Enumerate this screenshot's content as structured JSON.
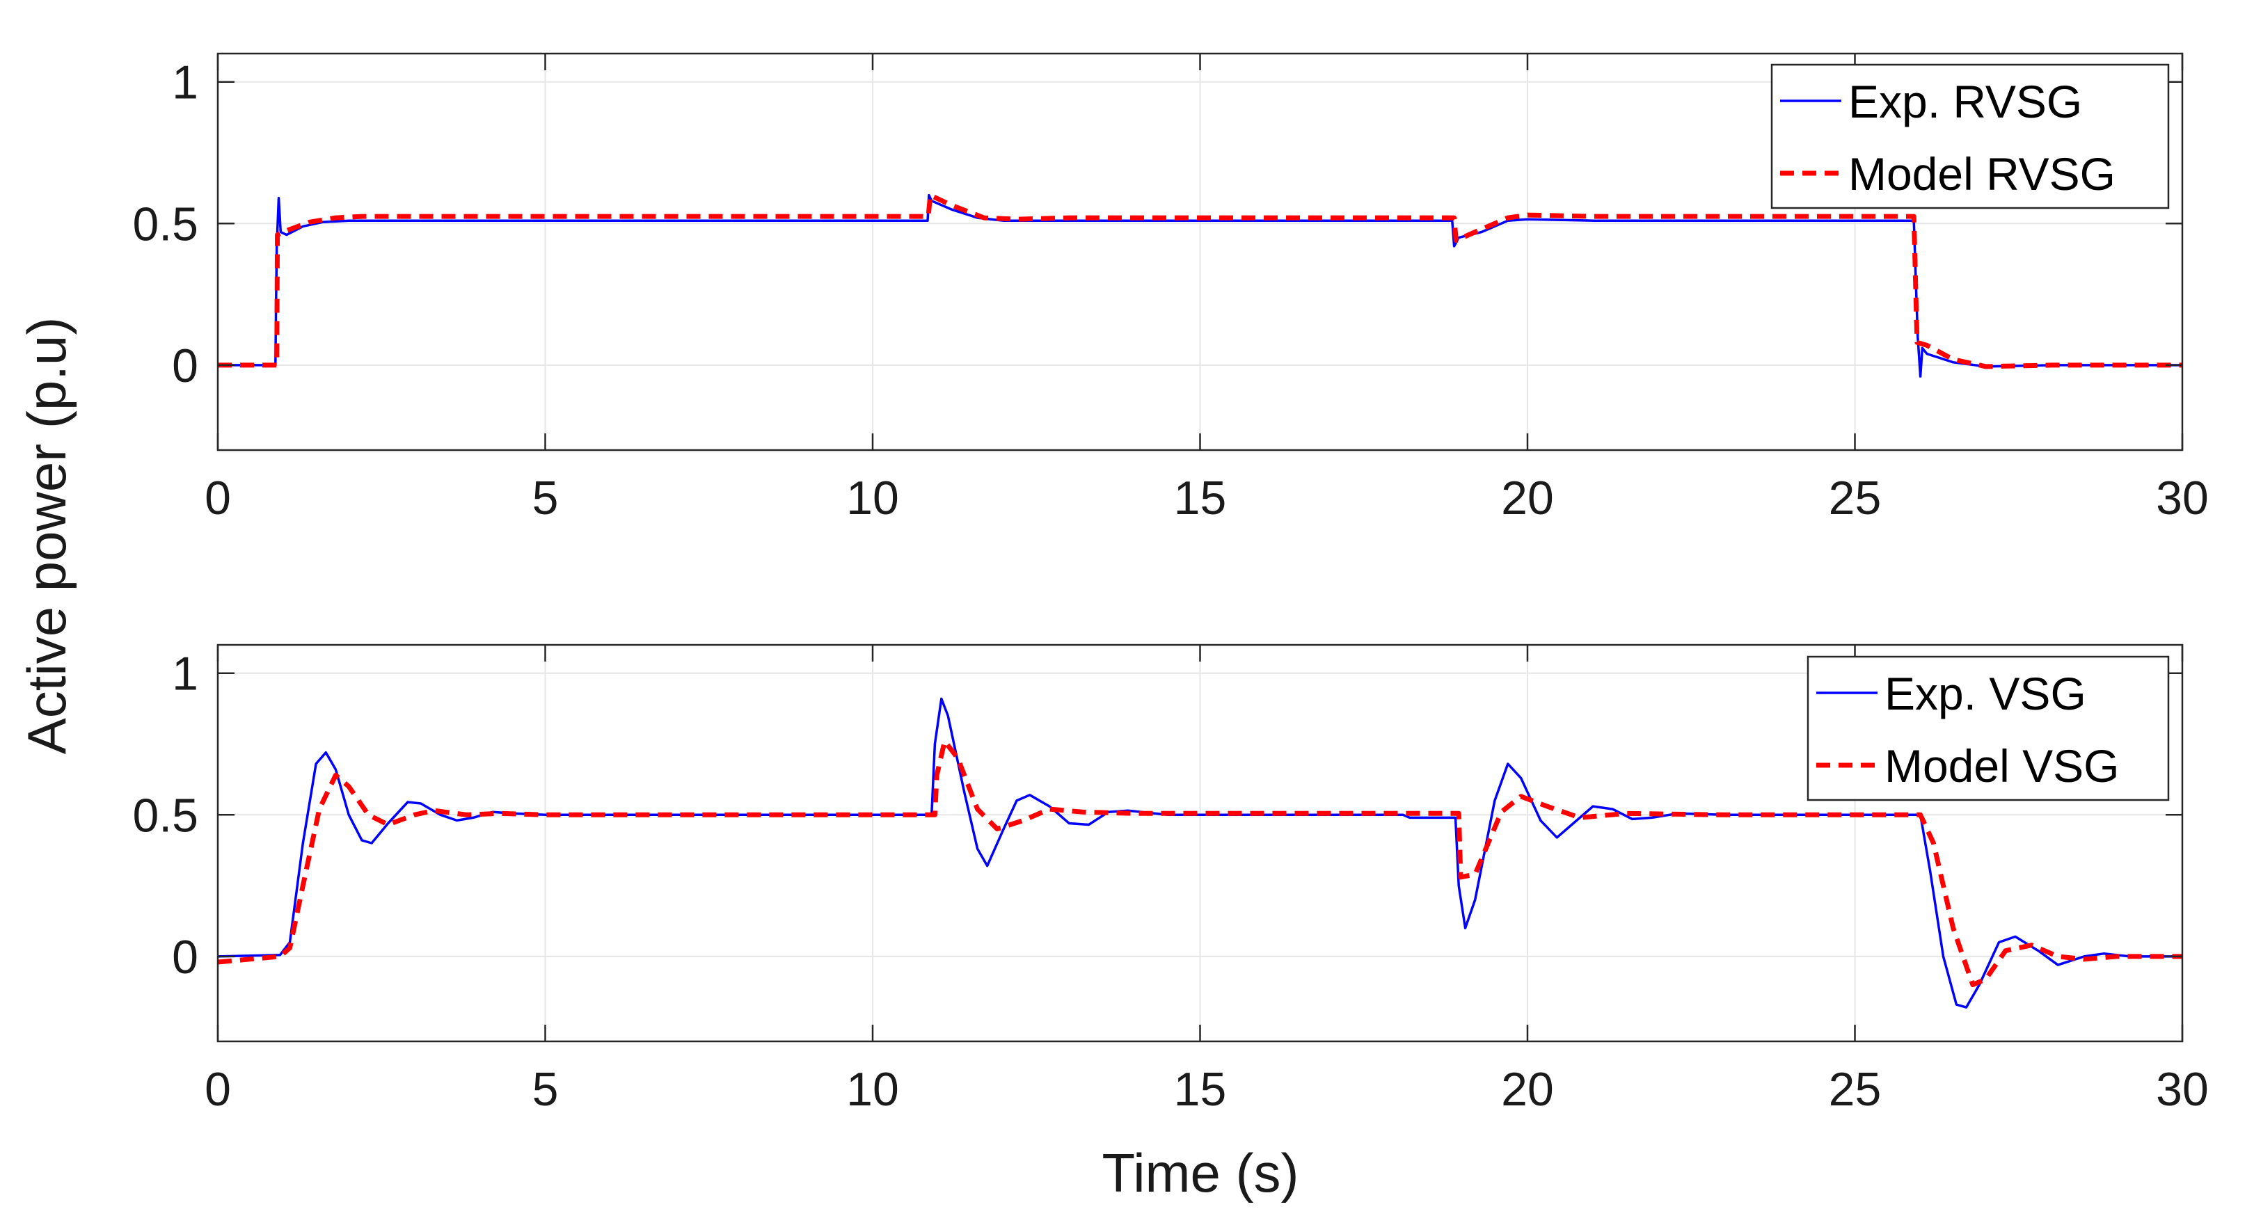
{
  "figure": {
    "xlabel": "Time (s)",
    "ylabel": "Active power (p.u)"
  },
  "colors": {
    "experiment": "#0000ff",
    "model": "#ff0000",
    "grid": "#e6e6e6",
    "axes": "#262626"
  },
  "chart_data": [
    {
      "type": "line",
      "xlim": [
        0,
        30
      ],
      "ylim": [
        -0.3,
        1.1
      ],
      "xticks": [
        "0",
        "5",
        "10",
        "15",
        "20",
        "25",
        "30"
      ],
      "yticks": [
        "0",
        "0.5",
        "1"
      ],
      "grid": true,
      "legend_position": "top-right",
      "series": [
        {
          "name": "Exp. RVSG",
          "style": "solid",
          "points": [
            [
              0,
              0
            ],
            [
              0.88,
              0
            ],
            [
              0.89,
              0.22
            ],
            [
              0.9,
              0.42
            ],
            [
              0.93,
              0.59
            ],
            [
              0.96,
              0.47
            ],
            [
              1.05,
              0.46
            ],
            [
              1.3,
              0.49
            ],
            [
              1.6,
              0.505
            ],
            [
              2,
              0.51
            ],
            [
              5,
              0.51
            ],
            [
              10.8,
              0.51
            ],
            [
              10.84,
              0.51
            ],
            [
              10.86,
              0.6
            ],
            [
              10.9,
              0.58
            ],
            [
              11.2,
              0.55
            ],
            [
              11.6,
              0.52
            ],
            [
              12,
              0.51
            ],
            [
              18.85,
              0.51
            ],
            [
              18.88,
              0.42
            ],
            [
              18.95,
              0.45
            ],
            [
              19.3,
              0.47
            ],
            [
              19.7,
              0.51
            ],
            [
              20,
              0.515
            ],
            [
              21,
              0.51
            ],
            [
              25.9,
              0.51
            ],
            [
              25.93,
              0.3
            ],
            [
              25.96,
              0.1
            ],
            [
              26.0,
              -0.04
            ],
            [
              26.03,
              0.06
            ],
            [
              26.1,
              0.04
            ],
            [
              26.5,
              0.01
            ],
            [
              27,
              -0.005
            ],
            [
              28,
              0
            ],
            [
              30,
              0
            ]
          ]
        },
        {
          "name": "Model RVSG",
          "style": "dashed",
          "points": [
            [
              0,
              0
            ],
            [
              0.9,
              0
            ],
            [
              0.91,
              0.46
            ],
            [
              1.05,
              0.475
            ],
            [
              1.4,
              0.505
            ],
            [
              1.8,
              0.52
            ],
            [
              2.2,
              0.525
            ],
            [
              10.85,
              0.525
            ],
            [
              10.88,
              0.6
            ],
            [
              11.2,
              0.565
            ],
            [
              11.7,
              0.52
            ],
            [
              12.2,
              0.515
            ],
            [
              13,
              0.52
            ],
            [
              18.88,
              0.52
            ],
            [
              18.91,
              0.44
            ],
            [
              19.2,
              0.47
            ],
            [
              19.7,
              0.52
            ],
            [
              20,
              0.53
            ],
            [
              21,
              0.525
            ],
            [
              25.9,
              0.525
            ],
            [
              25.95,
              0.08
            ],
            [
              26.1,
              0.07
            ],
            [
              26.5,
              0.02
            ],
            [
              27,
              -0.005
            ],
            [
              28,
              0
            ],
            [
              30,
              0
            ]
          ]
        }
      ]
    },
    {
      "type": "line",
      "xlim": [
        0,
        30
      ],
      "ylim": [
        -0.3,
        1.1
      ],
      "xticks": [
        "0",
        "5",
        "10",
        "15",
        "20",
        "25",
        "30"
      ],
      "yticks": [
        "0",
        "0.5",
        "1"
      ],
      "grid": true,
      "legend_position": "top-right",
      "series": [
        {
          "name": "Exp. VSG",
          "style": "solid",
          "points": [
            [
              0,
              0
            ],
            [
              0.95,
              0.005
            ],
            [
              1.1,
              0.05
            ],
            [
              1.3,
              0.4
            ],
            [
              1.5,
              0.68
            ],
            [
              1.65,
              0.72
            ],
            [
              1.8,
              0.66
            ],
            [
              2.0,
              0.5
            ],
            [
              2.2,
              0.41
            ],
            [
              2.35,
              0.4
            ],
            [
              2.6,
              0.47
            ],
            [
              2.9,
              0.545
            ],
            [
              3.1,
              0.54
            ],
            [
              3.4,
              0.5
            ],
            [
              3.65,
              0.48
            ],
            [
              3.9,
              0.49
            ],
            [
              4.2,
              0.51
            ],
            [
              4.5,
              0.505
            ],
            [
              5,
              0.5
            ],
            [
              10.9,
              0.5
            ],
            [
              10.95,
              0.75
            ],
            [
              11.05,
              0.91
            ],
            [
              11.15,
              0.85
            ],
            [
              11.4,
              0.58
            ],
            [
              11.6,
              0.38
            ],
            [
              11.75,
              0.32
            ],
            [
              12.0,
              0.45
            ],
            [
              12.2,
              0.55
            ],
            [
              12.4,
              0.57
            ],
            [
              12.7,
              0.53
            ],
            [
              13.0,
              0.47
            ],
            [
              13.3,
              0.465
            ],
            [
              13.6,
              0.51
            ],
            [
              13.9,
              0.515
            ],
            [
              14.5,
              0.5
            ],
            [
              18.1,
              0.5
            ],
            [
              18.2,
              0.49
            ],
            [
              18.9,
              0.49
            ],
            [
              18.95,
              0.25
            ],
            [
              19.05,
              0.1
            ],
            [
              19.2,
              0.2
            ],
            [
              19.5,
              0.55
            ],
            [
              19.7,
              0.68
            ],
            [
              19.9,
              0.63
            ],
            [
              20.2,
              0.48
            ],
            [
              20.45,
              0.42
            ],
            [
              20.7,
              0.47
            ],
            [
              21.0,
              0.53
            ],
            [
              21.3,
              0.52
            ],
            [
              21.6,
              0.485
            ],
            [
              21.9,
              0.49
            ],
            [
              22.3,
              0.505
            ],
            [
              23,
              0.5
            ],
            [
              26,
              0.5
            ],
            [
              26.15,
              0.3
            ],
            [
              26.35,
              0.0
            ],
            [
              26.55,
              -0.17
            ],
            [
              26.7,
              -0.18
            ],
            [
              26.9,
              -0.1
            ],
            [
              27.2,
              0.05
            ],
            [
              27.45,
              0.07
            ],
            [
              27.8,
              0.02
            ],
            [
              28.1,
              -0.03
            ],
            [
              28.5,
              0.0
            ],
            [
              28.8,
              0.01
            ],
            [
              29.2,
              0.0
            ],
            [
              30,
              0
            ]
          ]
        },
        {
          "name": "Model VSG",
          "style": "dashed",
          "points": [
            [
              0,
              -0.02
            ],
            [
              0.95,
              0
            ],
            [
              1.1,
              0.03
            ],
            [
              1.3,
              0.25
            ],
            [
              1.55,
              0.52
            ],
            [
              1.8,
              0.64
            ],
            [
              2.0,
              0.6
            ],
            [
              2.3,
              0.5
            ],
            [
              2.6,
              0.465
            ],
            [
              3.0,
              0.5
            ],
            [
              3.3,
              0.515
            ],
            [
              3.8,
              0.5
            ],
            [
              4.3,
              0.505
            ],
            [
              5,
              0.5
            ],
            [
              10.95,
              0.5
            ],
            [
              10.98,
              0.64
            ],
            [
              11.1,
              0.76
            ],
            [
              11.3,
              0.7
            ],
            [
              11.6,
              0.52
            ],
            [
              11.9,
              0.45
            ],
            [
              12.3,
              0.48
            ],
            [
              12.7,
              0.52
            ],
            [
              13.2,
              0.51
            ],
            [
              14,
              0.505
            ],
            [
              18.95,
              0.505
            ],
            [
              18.98,
              0.28
            ],
            [
              19.2,
              0.29
            ],
            [
              19.6,
              0.51
            ],
            [
              19.9,
              0.565
            ],
            [
              20.3,
              0.53
            ],
            [
              20.8,
              0.49
            ],
            [
              21.5,
              0.505
            ],
            [
              23,
              0.5
            ],
            [
              26.0,
              0.5
            ],
            [
              26.2,
              0.4
            ],
            [
              26.5,
              0.1
            ],
            [
              26.8,
              -0.1
            ],
            [
              27.0,
              -0.08
            ],
            [
              27.3,
              0.02
            ],
            [
              27.7,
              0.04
            ],
            [
              28.1,
              0.0
            ],
            [
              28.5,
              -0.01
            ],
            [
              29,
              0
            ],
            [
              30,
              0
            ]
          ]
        }
      ]
    }
  ]
}
